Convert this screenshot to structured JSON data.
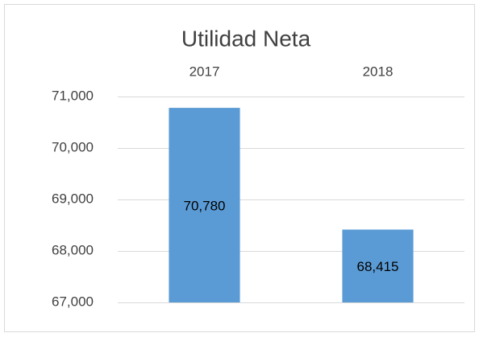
{
  "chart_data": {
    "type": "bar",
    "title": "Utilidad Neta",
    "categories": [
      "2017",
      "2018"
    ],
    "values": [
      70780,
      68415
    ],
    "value_labels": [
      "70,780",
      "68,415"
    ],
    "color": "#5b9bd5",
    "ylim": [
      67000,
      71000
    ],
    "yticks": [
      {
        "value": 67000,
        "label": "67,000"
      },
      {
        "value": 68000,
        "label": "68,000"
      },
      {
        "value": 69000,
        "label": "69,000"
      },
      {
        "value": 70000,
        "label": "70,000"
      },
      {
        "value": 71000,
        "label": "71,000"
      }
    ],
    "grid": true
  }
}
